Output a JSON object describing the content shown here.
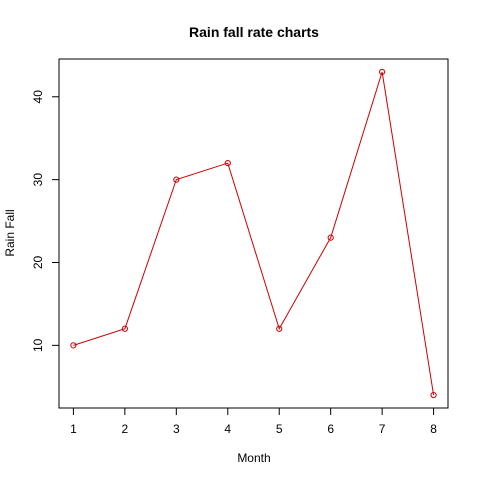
{
  "chart_data": {
    "type": "line",
    "title": "Rain fall rate charts",
    "xlabel": "Month",
    "ylabel": "Rain Fall",
    "x": [
      1,
      2,
      3,
      4,
      5,
      6,
      7,
      8
    ],
    "series": [
      {
        "values": [
          10,
          12,
          30,
          32,
          12,
          23,
          43,
          4
        ],
        "color": "#cc0000"
      }
    ],
    "xticks": [
      "1",
      "2",
      "3",
      "4",
      "5",
      "6",
      "7",
      "8"
    ],
    "yticks": [
      "10",
      "20",
      "30",
      "40"
    ],
    "xlim": [
      0.72,
      8.28
    ],
    "ylim": [
      2.44,
      44.56
    ],
    "grid": false,
    "marker": "open-circle",
    "frame_color": "#000000"
  }
}
